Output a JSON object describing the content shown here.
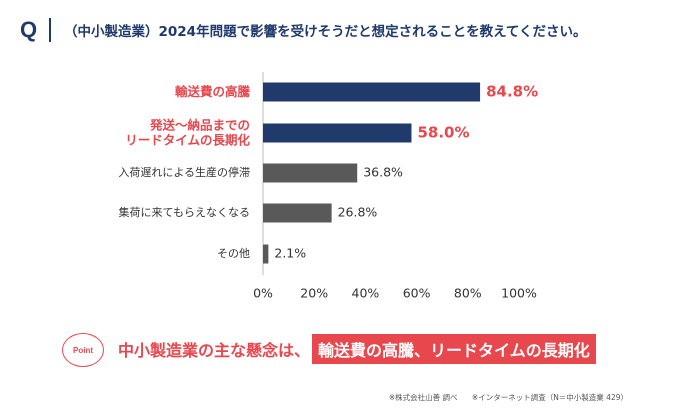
{
  "header": {
    "q_mark": "Q",
    "question": "（中小製造業）2024年問題で影響を受けそうだと想定されることを教えてください。"
  },
  "chart_data": {
    "type": "bar",
    "orientation": "horizontal",
    "categories": [
      [
        "輸送費の高騰"
      ],
      [
        "発送～納品までの",
        "リードタイムの長期化"
      ],
      [
        "入荷遅れによる生産の停滞"
      ],
      [
        "集荷に来てもらえなくなる"
      ],
      [
        "その他"
      ]
    ],
    "values": [
      84.8,
      58.0,
      36.8,
      26.8,
      2.1
    ],
    "value_labels": [
      "84.8%",
      "58.0%",
      "36.8%",
      "26.8%",
      "2.1%"
    ],
    "highlighted": [
      true,
      true,
      false,
      false,
      false
    ],
    "xlim": [
      0,
      100
    ],
    "xticks": [
      0,
      20,
      40,
      60,
      80,
      100
    ],
    "xtick_labels": [
      "0%",
      "20%",
      "40%",
      "60%",
      "80%",
      "100%"
    ],
    "colors": {
      "highlight": "#1f3a6b",
      "normal": "#595959",
      "highlight_text": "#e8474d",
      "axis": "#bfbfbf"
    }
  },
  "summary": {
    "badge": "Point",
    "lead": "中小製造業の主な懸念は、",
    "highlight": "輸送費の高騰、リードタイムの長期化"
  },
  "footnotes": {
    "source": "※株式会社山善 調べ",
    "survey": "※インターネット調査（N＝中小製造業 429）"
  }
}
